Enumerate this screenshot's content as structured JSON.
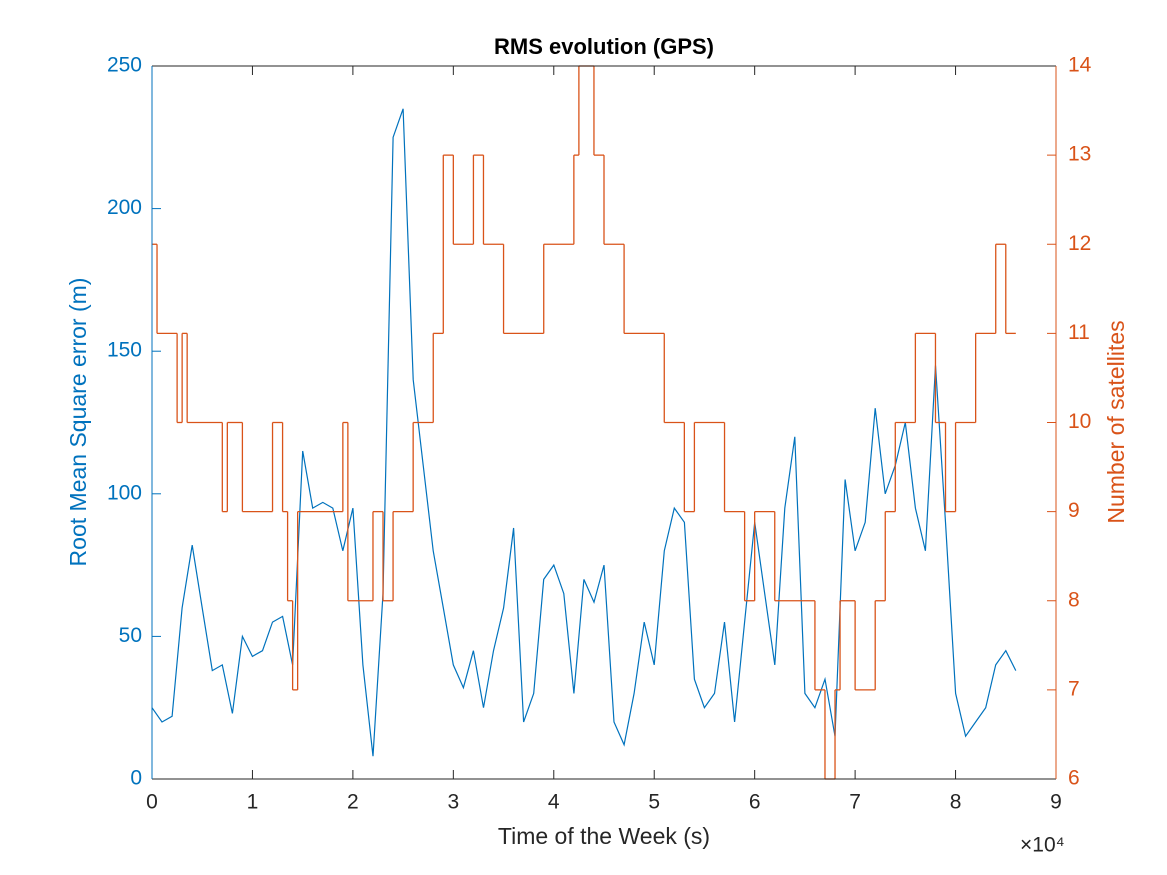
{
  "chart_data": {
    "type": "line",
    "title": "RMS evolution (GPS)",
    "x_label": "Time of the Week (s)",
    "y_label": "Root Mean Square error (m)",
    "y2_label": "Number of satellites",
    "x_multiplier_label": "×10⁴",
    "xlim": [
      0,
      90000
    ],
    "xticks": [
      {
        "value": 0,
        "label": "0"
      },
      {
        "value": 10000,
        "label": "1"
      },
      {
        "value": 20000,
        "label": "2"
      },
      {
        "value": 30000,
        "label": "3"
      },
      {
        "value": 40000,
        "label": "4"
      },
      {
        "value": 50000,
        "label": "5"
      },
      {
        "value": 60000,
        "label": "6"
      },
      {
        "value": 70000,
        "label": "7"
      },
      {
        "value": 80000,
        "label": "8"
      },
      {
        "value": 90000,
        "label": "9"
      }
    ],
    "ylim": [
      0,
      250
    ],
    "yticks": [
      0,
      50,
      100,
      150,
      200,
      250
    ],
    "y2lim": [
      6,
      14
    ],
    "y2ticks": [
      6,
      7,
      8,
      9,
      10,
      11,
      12,
      13,
      14
    ],
    "series": [
      {
        "name": "RMS",
        "color": "#0072BD",
        "axis": "y",
        "x": [
          0,
          1000,
          2000,
          3000,
          4000,
          5000,
          6000,
          7000,
          8000,
          9000,
          10000,
          11000,
          12000,
          13000,
          14000,
          15000,
          16000,
          17000,
          18000,
          19000,
          20000,
          21000,
          22000,
          23000,
          24000,
          25000,
          26000,
          27000,
          28000,
          29000,
          30000,
          31000,
          32000,
          33000,
          34000,
          35000,
          36000,
          37000,
          38000,
          39000,
          40000,
          41000,
          42000,
          43000,
          44000,
          45000,
          46000,
          47000,
          48000,
          49000,
          50000,
          51000,
          52000,
          53000,
          54000,
          55000,
          56000,
          57000,
          58000,
          59000,
          60000,
          61000,
          62000,
          63000,
          64000,
          65000,
          66000,
          67000,
          68000,
          69000,
          70000,
          71000,
          72000,
          73000,
          74000,
          75000,
          76000,
          77000,
          78000,
          79000,
          80000,
          81000,
          82000,
          83000,
          84000,
          85000,
          86000
        ],
        "values": [
          25,
          20,
          22,
          60,
          82,
          60,
          38,
          40,
          23,
          50,
          43,
          45,
          55,
          57,
          40,
          115,
          95,
          97,
          95,
          80,
          95,
          40,
          8,
          65,
          225,
          235,
          140,
          110,
          80,
          60,
          40,
          32,
          45,
          25,
          45,
          60,
          88,
          20,
          30,
          70,
          75,
          65,
          30,
          70,
          62,
          75,
          20,
          12,
          30,
          55,
          40,
          80,
          95,
          90,
          35,
          25,
          30,
          55,
          20,
          55,
          90,
          65,
          40,
          95,
          120,
          30,
          25,
          35,
          15,
          105,
          80,
          90,
          130,
          100,
          110,
          125,
          95,
          80,
          145,
          90,
          30,
          15,
          20,
          25,
          40,
          45,
          38
        ]
      },
      {
        "name": "Satellites",
        "color": "#D95319",
        "axis": "y2",
        "drawstyle": "steps-post",
        "x": [
          0,
          500,
          2500,
          3000,
          3500,
          7000,
          7500,
          9000,
          12000,
          13000,
          13500,
          14000,
          14500,
          19000,
          19500,
          22000,
          23000,
          24000,
          26000,
          28000,
          29000,
          30000,
          32000,
          33000,
          35000,
          39000,
          42000,
          42500,
          44000,
          45000,
          47000,
          51000,
          53000,
          54000,
          57000,
          59000,
          60000,
          62000,
          66000,
          67000,
          68000,
          68500,
          70000,
          72000,
          73000,
          74000,
          76000,
          78000,
          79000,
          80000,
          82000,
          84000,
          85000,
          86000
        ],
        "values": [
          12,
          11,
          10,
          11,
          10,
          9,
          10,
          9,
          10,
          9,
          8,
          7,
          9,
          10,
          8,
          9,
          8,
          9,
          10,
          11,
          13,
          12,
          13,
          12,
          11,
          12,
          13,
          14,
          13,
          12,
          11,
          10,
          9,
          10,
          9,
          8,
          9,
          8,
          7,
          6,
          7,
          8,
          7,
          8,
          9,
          10,
          11,
          10,
          9,
          10,
          11,
          12,
          11,
          11
        ]
      }
    ]
  }
}
